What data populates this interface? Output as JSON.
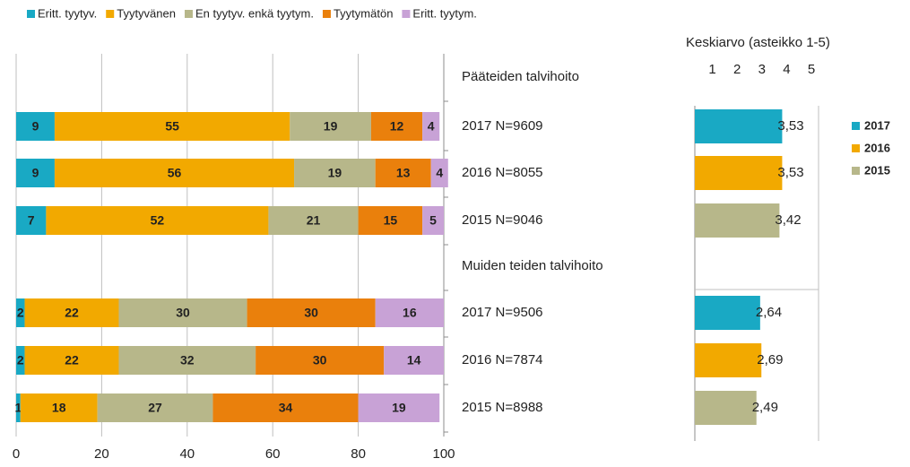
{
  "chart_data": [
    {
      "type": "stacked-bar-horizontal",
      "categories": [
        "Pääteiden talvihoito",
        "2017 N=9609",
        "2016 N=8055",
        "2015 N=9046",
        "Muiden teiden talvihoito",
        "2017 N=9506",
        "2016 N=7874",
        "2015 N=8988"
      ],
      "series": [
        {
          "name": "Eritt. tyytyv.",
          "color": "#19a9c4",
          "values": [
            null,
            9,
            9,
            7,
            null,
            2,
            2,
            1
          ]
        },
        {
          "name": "Tyytyvänen",
          "color": "#f2a900",
          "values": [
            null,
            55,
            56,
            52,
            null,
            22,
            22,
            18
          ]
        },
        {
          "name": "En tyytyv. enkä tyytym.",
          "color": "#b7b78a",
          "values": [
            null,
            19,
            19,
            21,
            null,
            30,
            32,
            27
          ]
        },
        {
          "name": "Tyytymätön",
          "color": "#ea800c",
          "values": [
            null,
            12,
            13,
            15,
            null,
            30,
            30,
            34
          ]
        },
        {
          "name": "Eritt. tyytym.",
          "color": "#c8a2d6",
          "values": [
            null,
            4,
            4,
            5,
            null,
            16,
            14,
            19
          ]
        }
      ],
      "xlim": [
        0,
        100
      ],
      "xticks": [
        0,
        20,
        40,
        60,
        80,
        100
      ],
      "grid": true
    },
    {
      "type": "bar-horizontal",
      "title": "Keskiarvo (asteikko 1-5)",
      "series": [
        {
          "name": "2017",
          "color": "#19a9c4",
          "values": [
            3.53,
            2.64
          ],
          "value_labels": [
            "3,53",
            "2,64"
          ]
        },
        {
          "name": "2016",
          "color": "#f2a900",
          "values": [
            3.53,
            2.69
          ],
          "value_labels": [
            "3,53",
            "2,69"
          ]
        },
        {
          "name": "2015",
          "color": "#b7b78a",
          "values": [
            3.42,
            2.49
          ],
          "value_labels": [
            "3,42",
            "2,49"
          ]
        }
      ],
      "xlim": [
        0,
        5
      ],
      "xticks": [
        1,
        2,
        3,
        4,
        5
      ]
    }
  ]
}
